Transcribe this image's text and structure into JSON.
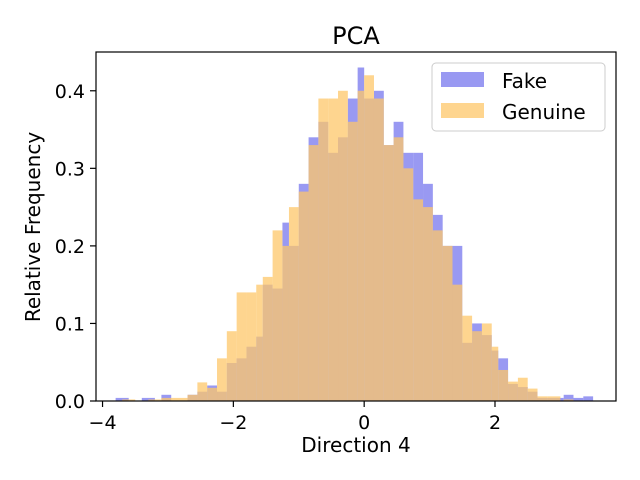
{
  "chart_data": {
    "type": "histogram",
    "title": "PCA",
    "xlabel": "Direction 4",
    "ylabel": "Relative Frequency",
    "xlim": [
      -4.1,
      3.85
    ],
    "ylim": [
      0,
      0.45
    ],
    "xticks": [
      -4,
      -2,
      0,
      2
    ],
    "yticks": [
      0.0,
      0.1,
      0.2,
      0.3,
      0.4
    ],
    "legend_position": "upper right",
    "series": [
      {
        "name": "Fake",
        "color": "#7777ee",
        "bins": [
          [
            -3.8,
            -3.6,
            0.004
          ],
          [
            -3.4,
            -3.2,
            0.004
          ],
          [
            -3.1,
            -2.95,
            0.008
          ],
          [
            -2.7,
            -2.55,
            0.008
          ],
          [
            -2.55,
            -2.4,
            0.012
          ],
          [
            -2.4,
            -2.25,
            0.02
          ],
          [
            -2.25,
            -2.1,
            0.012
          ],
          [
            -2.1,
            -1.95,
            0.049
          ],
          [
            -1.95,
            -1.8,
            0.055
          ],
          [
            -1.8,
            -1.65,
            0.07
          ],
          [
            -1.65,
            -1.55,
            0.083
          ],
          [
            -1.55,
            -1.4,
            0.15
          ],
          [
            -1.4,
            -1.25,
            0.145
          ],
          [
            -1.25,
            -1.15,
            0.23
          ],
          [
            -1.15,
            -1.0,
            0.2
          ],
          [
            -1.0,
            -0.85,
            0.28
          ],
          [
            -0.85,
            -0.7,
            0.34
          ],
          [
            -0.7,
            -0.55,
            0.36
          ],
          [
            -0.55,
            -0.4,
            0.32
          ],
          [
            -0.4,
            -0.25,
            0.34
          ],
          [
            -0.25,
            -0.1,
            0.39
          ],
          [
            -0.1,
            0.0,
            0.43
          ],
          [
            0.0,
            0.15,
            0.39
          ],
          [
            0.15,
            0.3,
            0.4
          ],
          [
            0.3,
            0.45,
            0.33
          ],
          [
            0.45,
            0.6,
            0.36
          ],
          [
            0.6,
            0.75,
            0.32
          ],
          [
            0.75,
            0.9,
            0.32
          ],
          [
            0.9,
            1.05,
            0.28
          ],
          [
            1.05,
            1.2,
            0.24
          ],
          [
            1.2,
            1.35,
            0.2
          ],
          [
            1.35,
            1.5,
            0.2
          ],
          [
            1.5,
            1.65,
            0.075
          ],
          [
            1.65,
            1.8,
            0.1
          ],
          [
            1.8,
            1.95,
            0.085
          ],
          [
            1.95,
            2.05,
            0.065
          ],
          [
            2.05,
            2.2,
            0.055
          ],
          [
            2.2,
            2.35,
            0.022
          ],
          [
            2.35,
            2.5,
            0.018
          ],
          [
            2.5,
            2.65,
            0.012
          ],
          [
            2.65,
            2.8,
            0.004
          ],
          [
            2.8,
            3.05,
            0.004
          ],
          [
            3.05,
            3.2,
            0.008
          ],
          [
            3.2,
            3.35,
            0.004
          ],
          [
            3.35,
            3.5,
            0.006
          ]
        ]
      },
      {
        "name": "Genuine",
        "color": "#fdc76a",
        "bins": [
          [
            -3.7,
            -3.5,
            0.002
          ],
          [
            -3.3,
            -3.1,
            0.002
          ],
          [
            -3.1,
            -2.9,
            0.004
          ],
          [
            -2.9,
            -2.7,
            0.004
          ],
          [
            -2.7,
            -2.55,
            0.008
          ],
          [
            -2.55,
            -2.4,
            0.024
          ],
          [
            -2.4,
            -2.25,
            0.017
          ],
          [
            -2.25,
            -2.1,
            0.055
          ],
          [
            -2.1,
            -1.95,
            0.09
          ],
          [
            -1.95,
            -1.8,
            0.14
          ],
          [
            -1.8,
            -1.65,
            0.14
          ],
          [
            -1.65,
            -1.55,
            0.15
          ],
          [
            -1.55,
            -1.4,
            0.16
          ],
          [
            -1.4,
            -1.25,
            0.22
          ],
          [
            -1.25,
            -1.15,
            0.2
          ],
          [
            -1.15,
            -1.0,
            0.25
          ],
          [
            -1.0,
            -0.85,
            0.27
          ],
          [
            -0.85,
            -0.7,
            0.33
          ],
          [
            -0.7,
            -0.55,
            0.39
          ],
          [
            -0.55,
            -0.4,
            0.39
          ],
          [
            -0.4,
            -0.25,
            0.4
          ],
          [
            -0.25,
            -0.1,
            0.36
          ],
          [
            -0.1,
            0.0,
            0.4
          ],
          [
            0.0,
            0.15,
            0.42
          ],
          [
            0.15,
            0.3,
            0.39
          ],
          [
            0.3,
            0.45,
            0.33
          ],
          [
            0.45,
            0.6,
            0.34
          ],
          [
            0.6,
            0.75,
            0.3
          ],
          [
            0.75,
            0.9,
            0.26
          ],
          [
            0.9,
            1.05,
            0.25
          ],
          [
            1.05,
            1.2,
            0.22
          ],
          [
            1.2,
            1.35,
            0.2
          ],
          [
            1.35,
            1.5,
            0.15
          ],
          [
            1.5,
            1.65,
            0.11
          ],
          [
            1.65,
            1.8,
            0.09
          ],
          [
            1.8,
            1.95,
            0.1
          ],
          [
            1.95,
            2.05,
            0.07
          ],
          [
            2.05,
            2.2,
            0.04
          ],
          [
            2.2,
            2.35,
            0.025
          ],
          [
            2.35,
            2.5,
            0.03
          ],
          [
            2.5,
            2.65,
            0.016
          ],
          [
            2.65,
            2.8,
            0.006
          ],
          [
            2.8,
            3.0,
            0.006
          ],
          [
            3.05,
            3.2,
            0.002
          ]
        ]
      }
    ]
  }
}
